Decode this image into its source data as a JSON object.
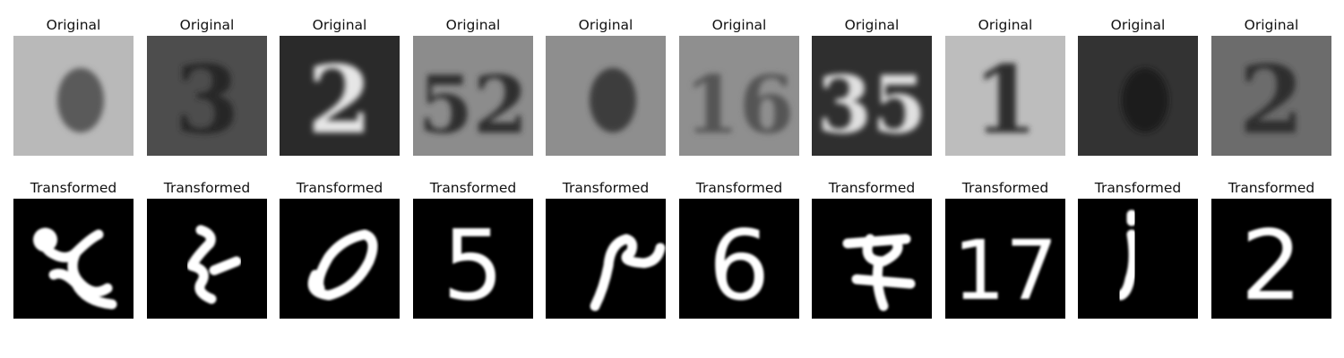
{
  "figure": {
    "rows": [
      {
        "kind": "original",
        "panels": [
          {
            "title": "Original",
            "digit": "",
            "bg": "#b9b9b9",
            "fg": "#5a5a5a"
          },
          {
            "title": "Original",
            "digit": "3",
            "bg": "#4d4d4d",
            "fg": "#262626"
          },
          {
            "title": "Original",
            "digit": "2",
            "bg": "#2a2a2a",
            "fg": "#e6e6e6"
          },
          {
            "title": "Original",
            "digit": "52",
            "bg": "#8c8c8c",
            "fg": "#2e2e2e"
          },
          {
            "title": "Original",
            "digit": "",
            "bg": "#8e8e8e",
            "fg": "#3d3d3d"
          },
          {
            "title": "Original",
            "digit": "16",
            "bg": "#8f8f8f",
            "fg": "#555555"
          },
          {
            "title": "Original",
            "digit": "35",
            "bg": "#2f2f2f",
            "fg": "#e0e0e0"
          },
          {
            "title": "Original",
            "digit": "1",
            "bg": "#bdbdbd",
            "fg": "#2f2f2f"
          },
          {
            "title": "Original",
            "digit": "",
            "bg": "#333333",
            "fg": "#1a1a1a"
          },
          {
            "title": "Original",
            "digit": "2",
            "bg": "#6c6c6c",
            "fg": "#2f2f2f"
          }
        ]
      },
      {
        "kind": "transformed",
        "panels": [
          {
            "title": "Transformed",
            "digit": "",
            "bg": "#000000",
            "fg": "#ffffff"
          },
          {
            "title": "Transformed",
            "digit": "",
            "bg": "#000000",
            "fg": "#ffffff"
          },
          {
            "title": "Transformed",
            "digit": "",
            "bg": "#000000",
            "fg": "#ffffff"
          },
          {
            "title": "Transformed",
            "digit": "5",
            "bg": "#000000",
            "fg": "#ffffff"
          },
          {
            "title": "Transformed",
            "digit": "",
            "bg": "#000000",
            "fg": "#ffffff"
          },
          {
            "title": "Transformed",
            "digit": "6",
            "bg": "#000000",
            "fg": "#ffffff"
          },
          {
            "title": "Transformed",
            "digit": "",
            "bg": "#000000",
            "fg": "#ffffff"
          },
          {
            "title": "Transformed",
            "digit": "17",
            "bg": "#000000",
            "fg": "#ffffff"
          },
          {
            "title": "Transformed",
            "digit": "",
            "bg": "#000000",
            "fg": "#ffffff"
          },
          {
            "title": "Transformed",
            "digit": "2",
            "bg": "#000000",
            "fg": "#ffffff"
          }
        ]
      }
    ]
  }
}
